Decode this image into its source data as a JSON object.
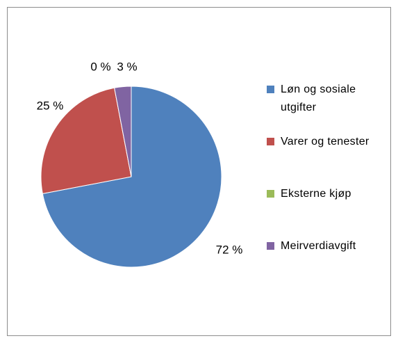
{
  "chart_data": {
    "type": "pie",
    "categories": [
      "Løn og sosiale utgifter",
      "Varer og tenester",
      "Eksterne kjøp",
      "Meirverdiavgift"
    ],
    "values": [
      72,
      25,
      0,
      3
    ],
    "value_labels": [
      "72 %",
      "25 %",
      "0 %",
      "3 %"
    ],
    "colors": [
      "#4f81bd",
      "#c0504d",
      "#9bbb59",
      "#8064a2"
    ],
    "legend": "right"
  }
}
